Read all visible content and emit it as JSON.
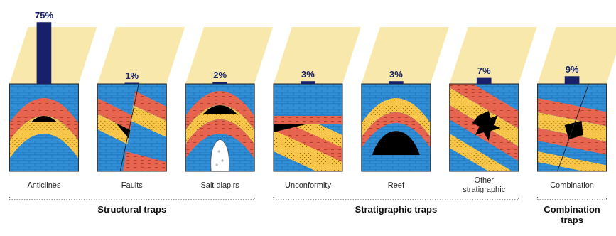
{
  "chart_data": {
    "type": "bar",
    "categories": [
      "Anticlines",
      "Faults",
      "Salt diapirs",
      "Unconformity",
      "Reef",
      "Other stratigraphic",
      "Combination"
    ],
    "values": [
      75,
      1,
      2,
      3,
      3,
      7,
      9
    ],
    "value_labels": [
      "75%",
      "1%",
      "2%",
      "3%",
      "3%",
      "7%",
      "9%"
    ],
    "color": "#16216a",
    "ylim": [
      0,
      85
    ],
    "data_labels": true,
    "tick_labels": false,
    "grid": false,
    "groups": [
      {
        "label": "Structural traps",
        "categories": [
          "Anticlines",
          "Faults",
          "Salt diapirs"
        ]
      },
      {
        "label": "Stratigraphic traps",
        "categories": [
          "Unconformity",
          "Reef",
          "Other stratigraphic"
        ]
      },
      {
        "label": "Combination traps",
        "categories": [
          "Combination"
        ]
      }
    ]
  }
}
